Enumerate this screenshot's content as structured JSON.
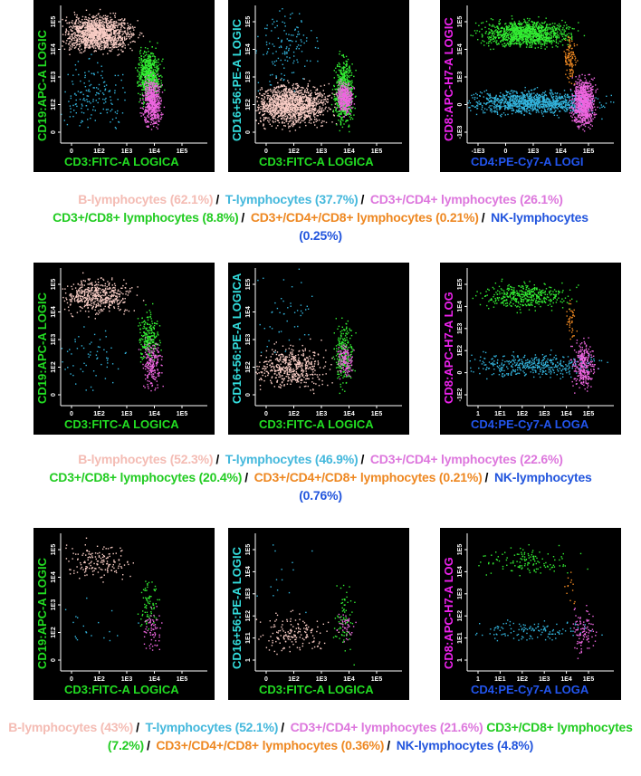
{
  "panels": [
    {
      "plots": [
        {
          "y_label": "CD19:APC-A LOGIC",
          "y_label_color": "#22dd22",
          "x_label": "CD3:FITC-A LOGICA",
          "x_label_color": "#22dd22",
          "x_ticks": [
            "0",
            "1E2",
            "1E3",
            "1E4",
            "1E5"
          ],
          "y_ticks": [
            "0",
            "1E2",
            "1E3",
            "1E4",
            "1E5"
          ]
        },
        {
          "y_label": "CD16+56:PE-A LOGIC",
          "y_label_color": "#33dddd",
          "x_label": "CD3:FITC-A LOGICA",
          "x_label_color": "#22dd22",
          "x_ticks": [
            "0",
            "1E2",
            "1E3",
            "1E4",
            "1E5"
          ],
          "y_ticks": [
            "0",
            "1E2",
            "1E3",
            "1E4",
            "1E5"
          ]
        },
        {
          "y_label": "CD8:APC-H7-A LOGIC",
          "y_label_color": "#ee22ee",
          "x_label": "CD4:PE-Cy7-A LOGI",
          "x_label_color": "#2255ee",
          "x_ticks": [
            "-1E3",
            "0",
            "1E3",
            "1E4",
            "1E5"
          ],
          "y_ticks": [
            "-1E3",
            "0",
            "1E3",
            "1E4",
            "1E5"
          ]
        }
      ],
      "caption": [
        {
          "text": "B-lymphocytes (62.1%)",
          "color": "#f4bcb4",
          "separator": "/"
        },
        {
          "text": "T-lymphocytes (37.7%)",
          "color": "#44b8dc",
          "separator": "/"
        },
        {
          "text": "CD3+/CD4+ lymphocytes (26.1%)",
          "color": "#dd77dd"
        },
        {
          "text": "CD3+/CD8+ lymphocytes (8.8%)",
          "color": "#22cc22",
          "separator": "/"
        },
        {
          "text": "CD3+/CD4+/CD8+ lymphocytes (0.21%)",
          "color": "#ee8822",
          "separator": "/"
        },
        {
          "text": "NK-lymphocytes (0.25%)",
          "color": "#2255dd"
        }
      ]
    },
    {
      "plots": [
        {
          "y_label": "CD19:APC-A LOGIC",
          "y_label_color": "#22dd22",
          "x_label": "CD3:FITC-A LOGICA",
          "x_label_color": "#22dd22",
          "x_ticks": [
            "0",
            "1E2",
            "1E3",
            "1E4",
            "1E5"
          ],
          "y_ticks": [
            "0",
            "1E2",
            "1E3",
            "1E4",
            "1E5"
          ]
        },
        {
          "y_label": "CD16+56:PE-A LOGICA",
          "y_label_color": "#33dddd",
          "x_label": "CD3:FITC-A LOGICA",
          "x_label_color": "#22dd22",
          "x_ticks": [
            "0",
            "1E2",
            "1E3",
            "1E4",
            "1E5"
          ],
          "y_ticks": [
            "0",
            "1E2",
            "1E3",
            "1E4",
            "1E5"
          ]
        },
        {
          "y_label": "CD8:APC-H7-A LOG",
          "y_label_color": "#ee22ee",
          "x_label": "CD4:PE-Cy7-A LOGA",
          "x_label_color": "#2255ee",
          "x_ticks": [
            "1",
            "1E1",
            "1E2",
            "1E3",
            "1E4",
            "1E5"
          ],
          "y_ticks": [
            "-1E2",
            "0",
            "1E2",
            "1E3",
            "1E4",
            "1E5"
          ]
        }
      ],
      "caption": [
        {
          "text": "B-lymphocytes (52.3%)",
          "color": "#f4bcb4",
          "separator": "/"
        },
        {
          "text": "T-lymphocytes (46.9%)",
          "color": "#44b8dc",
          "separator": "/"
        },
        {
          "text": "CD3+/CD4+ lymphocytes (22.6%)",
          "color": "#dd77dd"
        },
        {
          "text": "CD3+/CD8+ lymphocytes (20.4%)",
          "color": "#22cc22",
          "separator": "/"
        },
        {
          "text": "CD3+/CD4+/CD8+ lymphocytes (0.21%)",
          "color": "#ee8822",
          "separator": "/"
        },
        {
          "text": "NK-lymphocytes (0.76%)",
          "color": "#2255dd"
        }
      ]
    },
    {
      "plots": [
        {
          "y_label": "CD19:APC-A LOGIC",
          "y_label_color": "#22dd22",
          "x_label": "CD3:FITC-A LOGICA",
          "x_label_color": "#22dd22",
          "x_ticks": [
            "0",
            "1E2",
            "1E3",
            "1E4",
            "1E5"
          ],
          "y_ticks": [
            "0",
            "1E2",
            "1E3",
            "1E4",
            "1E5"
          ]
        },
        {
          "y_label": "CD16+56:PE-A LOGIC",
          "y_label_color": "#33dddd",
          "x_label": "CD3:FITC-A LOGICA",
          "x_label_color": "#22dd22",
          "x_ticks": [
            "0",
            "1E2",
            "1E3",
            "1E4",
            "1E5"
          ],
          "y_ticks": [
            "1",
            "1E1",
            "1E2",
            "1E3",
            "1E4",
            "1E5"
          ]
        },
        {
          "y_label": "CD8:APC-H7-A LOG",
          "y_label_color": "#ee22ee",
          "x_label": "CD4:PE-Cy7-A LOGA",
          "x_label_color": "#2255ee",
          "x_ticks": [
            "1",
            "1E1",
            "1E2",
            "1E3",
            "1E4",
            "1E5"
          ],
          "y_ticks": [
            "1",
            "1E1",
            "1E2",
            "1E3",
            "1E4",
            "1E5"
          ]
        }
      ],
      "caption": [
        {
          "text": "B-lymphocytes (43%)",
          "color": "#f4bcb4",
          "separator": "/"
        },
        {
          "text": "T-lymphocytes (52.1%)",
          "color": "#44b8dc",
          "separator": "/"
        },
        {
          "text": "CD3+/CD4+ lymphocytes (21.6%)",
          "color": "#dd77dd"
        },
        {
          "text": "CD3+/CD8+ lymphocytes (7.2%)",
          "color": "#22cc22",
          "separator": "/"
        },
        {
          "text": "CD3+/CD4+/CD8+ lymphocytes (0.36%)",
          "color": "#ee8822",
          "separator": "/"
        },
        {
          "text": "NK-lymphocytes (4.8%)",
          "color": "#2255dd"
        }
      ]
    }
  ]
}
